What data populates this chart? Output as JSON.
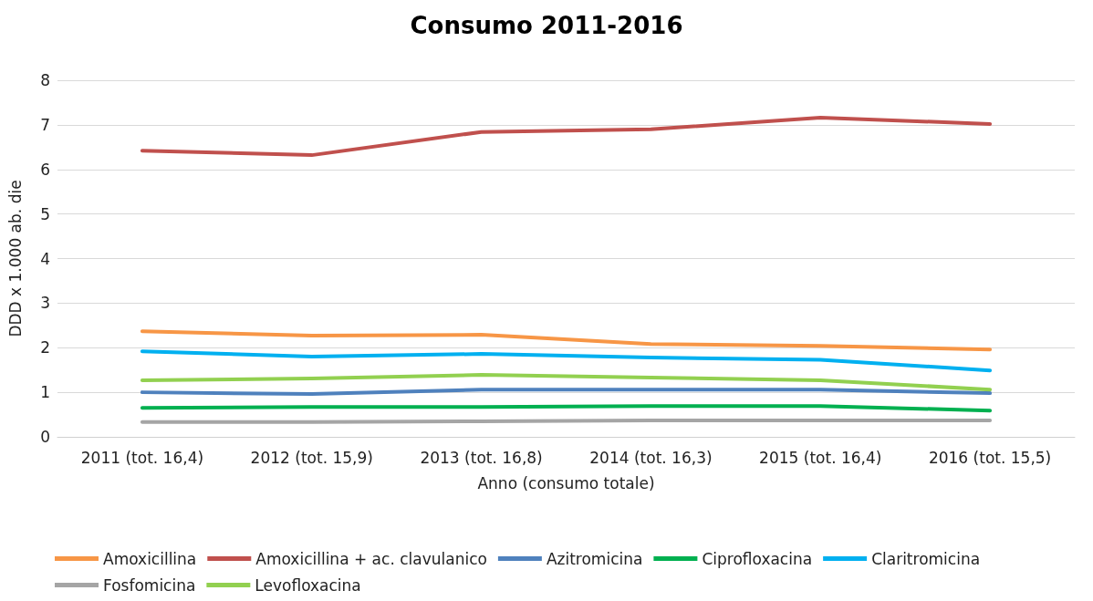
{
  "chart_data": {
    "type": "line",
    "title": "Consumo 2011-2016",
    "xlabel": "Anno (consumo totale)",
    "ylabel": "DDD x 1.000 ab. die",
    "categories": [
      "2011 (tot. 16,4)",
      "2012 (tot. 15,9)",
      "2013 (tot. 16,8)",
      "2014 (tot. 16,3)",
      "2015 (tot. 16,4)",
      "2016 (tot. 15,5)"
    ],
    "series": [
      {
        "name": "Amoxicillina",
        "color": "#f79646",
        "values": [
          2.37,
          2.27,
          2.29,
          2.08,
          2.04,
          1.96
        ]
      },
      {
        "name": "Amoxicillina + ac. clavulanico",
        "color": "#c0504d",
        "values": [
          6.42,
          6.32,
          6.84,
          6.9,
          7.16,
          7.02
        ]
      },
      {
        "name": "Azitromicina",
        "color": "#4f81bd",
        "values": [
          1.0,
          0.96,
          1.06,
          1.06,
          1.06,
          0.98
        ]
      },
      {
        "name": "Ciprofloxacina",
        "color": "#00b050",
        "values": [
          0.65,
          0.67,
          0.67,
          0.69,
          0.69,
          0.59
        ]
      },
      {
        "name": "Claritromicina",
        "color": "#00b0f0",
        "values": [
          1.92,
          1.8,
          1.86,
          1.78,
          1.73,
          1.49
        ]
      },
      {
        "name": "Fosfomicina",
        "color": "#a5a5a5",
        "values": [
          0.33,
          0.33,
          0.35,
          0.37,
          0.37,
          0.37
        ]
      },
      {
        "name": "Levofloxacina",
        "color": "#92d050",
        "values": [
          1.27,
          1.31,
          1.39,
          1.33,
          1.27,
          1.06
        ]
      }
    ],
    "ylim": [
      0,
      8
    ],
    "yticks": [
      0,
      1,
      2,
      3,
      4,
      5,
      6,
      7,
      8
    ],
    "grid": "y",
    "legend": "bottom",
    "marker": "none",
    "line_style": "solid"
  }
}
